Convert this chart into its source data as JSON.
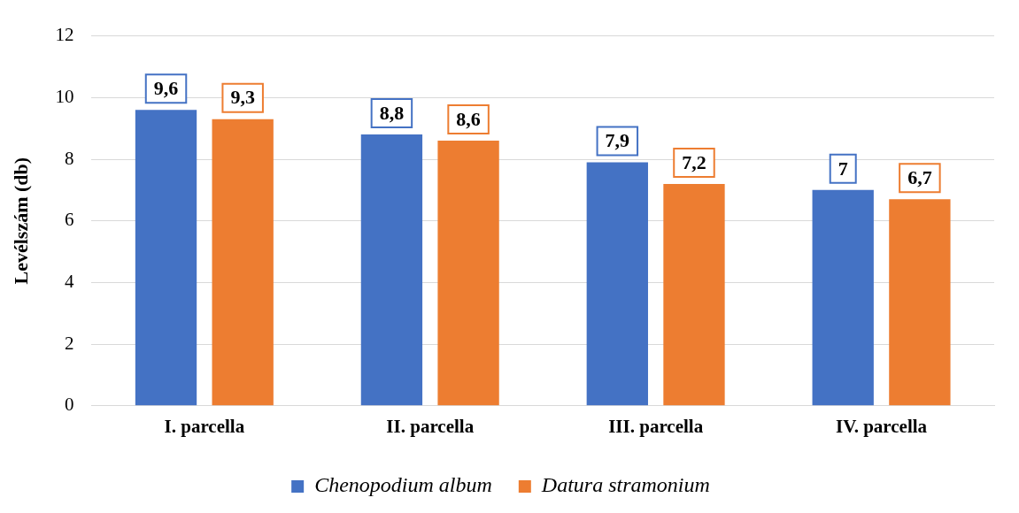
{
  "chart_data": {
    "type": "bar",
    "ylabel": "Levélszám (db)",
    "categories": [
      "I. parcella",
      "II. parcella",
      "III. parcella",
      "IV. parcella"
    ],
    "series": [
      {
        "name": "Chenopodium album",
        "color": "#4472c4",
        "values": [
          9.6,
          8.8,
          7.9,
          7
        ],
        "value_labels": [
          "9,6",
          "8,8",
          "7,9",
          "7"
        ]
      },
      {
        "name": "Datura stramonium",
        "color": "#ed7d31",
        "values": [
          9.3,
          8.6,
          7.2,
          6.7
        ],
        "value_labels": [
          "9,3",
          "8,6",
          "7,2",
          "6,7"
        ]
      }
    ],
    "ylim": [
      0,
      12
    ],
    "yticks": [
      0,
      2,
      4,
      6,
      8,
      10,
      12
    ],
    "grid": "y",
    "legend": "bottom"
  }
}
